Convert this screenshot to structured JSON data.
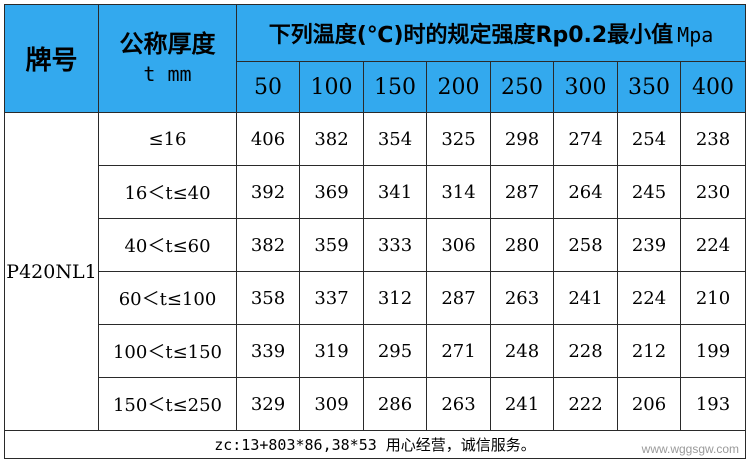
{
  "header": {
    "grade_label": "牌号",
    "thickness_label": "公称厚度",
    "thickness_unit": "t  mm",
    "temperature_title": "下列温度(℃)时的规定强度Rp0.2最小值",
    "temperature_unit": "Mpa",
    "temperatures": [
      "50",
      "100",
      "150",
      "200",
      "250",
      "300",
      "350",
      "400"
    ]
  },
  "grade": "P420NL1",
  "rows": [
    {
      "range": "≤16",
      "values": [
        "406",
        "382",
        "354",
        "325",
        "298",
        "274",
        "254",
        "238"
      ]
    },
    {
      "range": "16＜t≤40",
      "values": [
        "392",
        "369",
        "341",
        "314",
        "287",
        "264",
        "245",
        "230"
      ]
    },
    {
      "range": "40＜t≤60",
      "values": [
        "382",
        "359",
        "333",
        "306",
        "280",
        "258",
        "239",
        "224"
      ]
    },
    {
      "range": "60＜t≤100",
      "values": [
        "358",
        "337",
        "312",
        "287",
        "263",
        "241",
        "224",
        "210"
      ]
    },
    {
      "range": "100＜t≤150",
      "values": [
        "339",
        "319",
        "295",
        "271",
        "248",
        "228",
        "212",
        "199"
      ]
    },
    {
      "range": "150＜t≤250",
      "values": [
        "329",
        "309",
        "286",
        "263",
        "241",
        "222",
        "206",
        "193"
      ]
    }
  ],
  "footer": "zc:13+803*86,38*53 用心经营，诚信服务。",
  "watermark": "www.wggsgw.com",
  "colors": {
    "header_bg": "#33a9ee",
    "border": "#2a2a2a"
  }
}
